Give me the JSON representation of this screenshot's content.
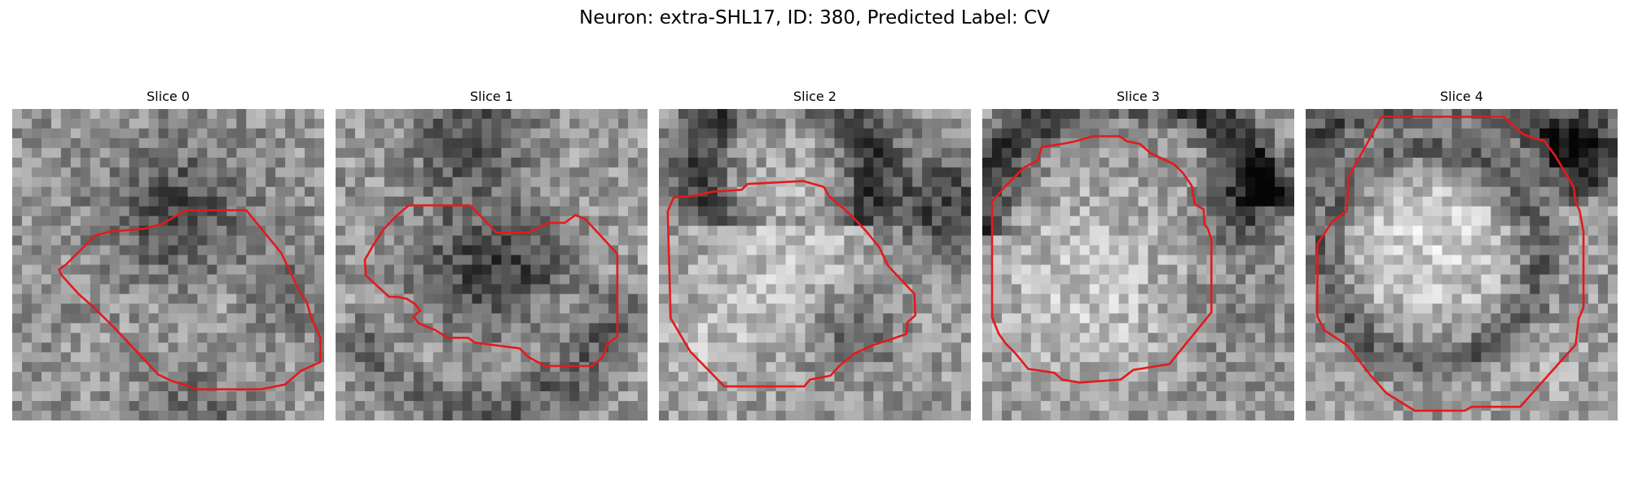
{
  "figure": {
    "title": "Neuron: extra-SHL17, ID: 380, Predicted Label: CV"
  },
  "panels": [
    {
      "title": "Slice 0"
    },
    {
      "title": "Slice 1"
    },
    {
      "title": "Slice 2"
    },
    {
      "title": "Slice 3"
    },
    {
      "title": "Slice 4"
    }
  ],
  "colors": {
    "contour": "#e41a1c",
    "background": "#ffffff"
  }
}
